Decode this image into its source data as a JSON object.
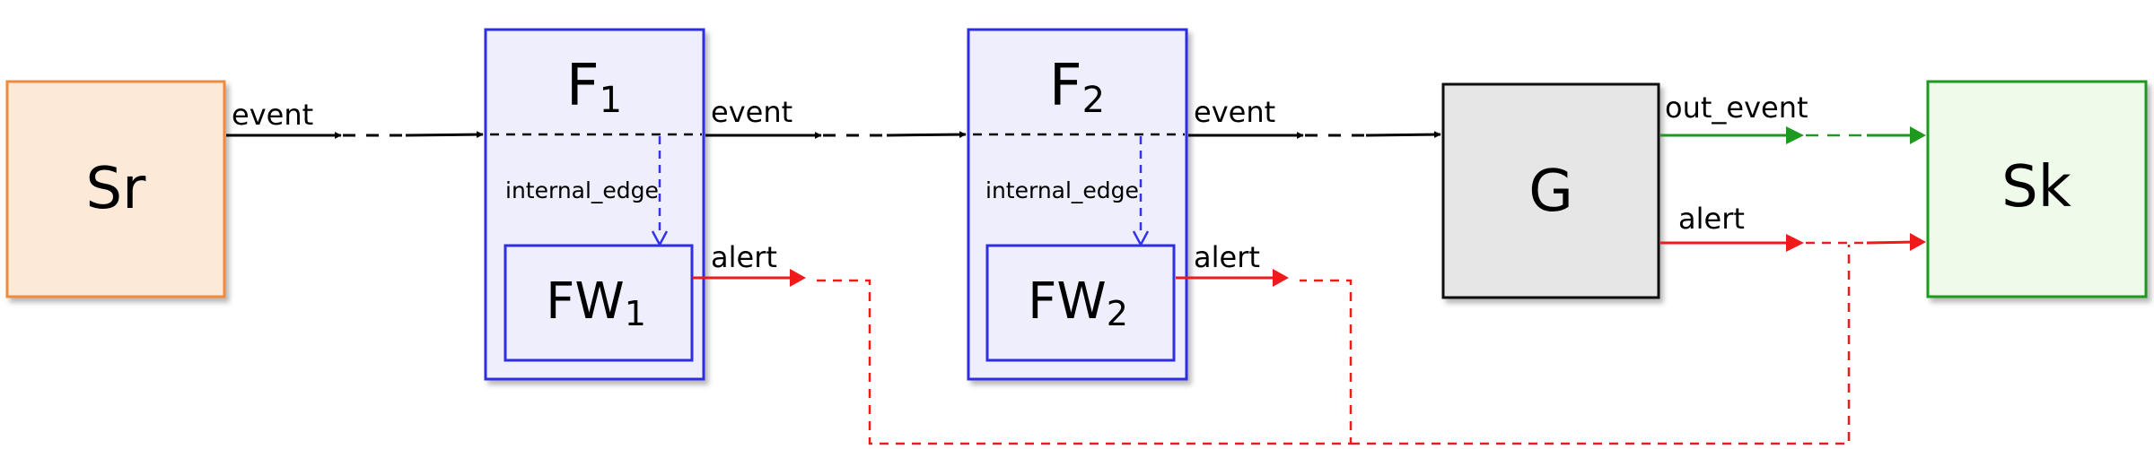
{
  "colors": {
    "source_fill": "#fde9d7",
    "source_stroke": "#f08a3c",
    "filter_fill": "#eeeefd",
    "filter_stroke": "#2f2fe0",
    "gate_fill": "#e6e6e6",
    "gate_stroke": "#111111",
    "sink_fill": "#eefbea",
    "sink_stroke": "#1e9a1e",
    "event_edge": "#000000",
    "alert_edge": "#f01a1a",
    "out_event_edge": "#1e9a1e",
    "internal_edge": "#3333ee"
  },
  "nodes": {
    "source": {
      "label": "Sr"
    },
    "filter1": {
      "label": "F",
      "subscript": "1",
      "inner_label": "FW",
      "inner_subscript": "1"
    },
    "filter2": {
      "label": "F",
      "subscript": "2",
      "inner_label": "FW",
      "inner_subscript": "2"
    },
    "gate": {
      "label": "G"
    },
    "sink": {
      "label": "Sk"
    }
  },
  "edges": {
    "sr_to_f1": "event",
    "f1_to_f2": "event",
    "f2_to_g": "event",
    "g_to_sk_out": "out_event",
    "g_to_sk_alert": "alert",
    "fw1_alert": "alert",
    "fw2_alert": "alert",
    "f1_internal": "internal_edge",
    "f2_internal": "internal_edge"
  }
}
